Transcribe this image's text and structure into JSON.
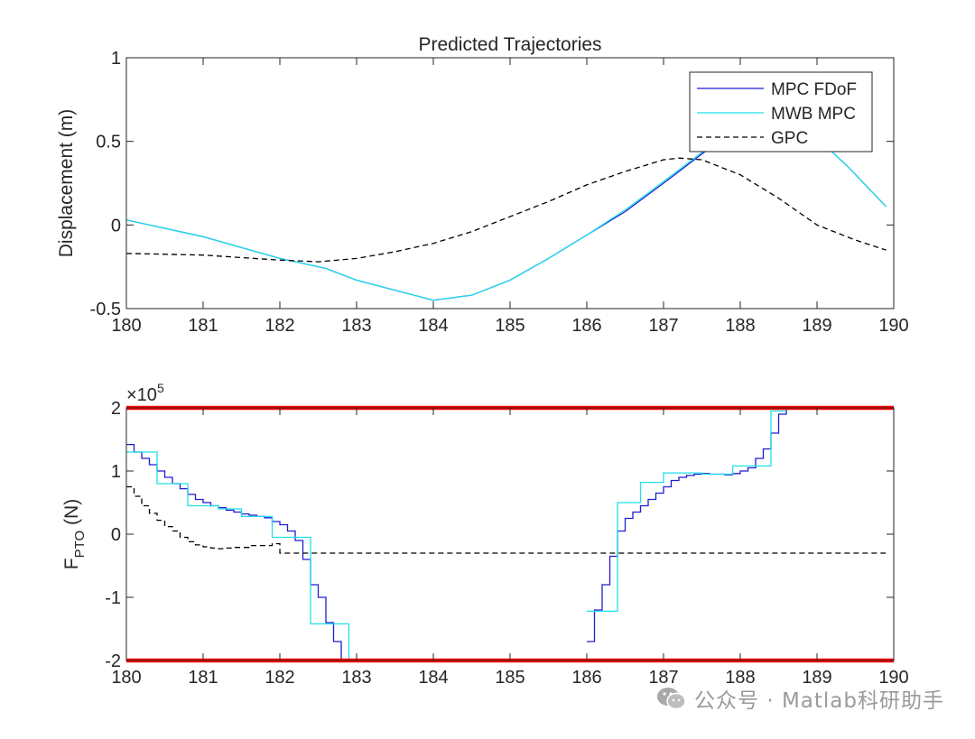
{
  "chart_data": [
    {
      "type": "line",
      "title": "Predicted Trajectories",
      "xlabel": "",
      "ylabel": "Displacement (m)",
      "xlim": [
        180,
        190
      ],
      "ylim": [
        -0.5,
        1
      ],
      "xticks": [
        "180",
        "181",
        "182",
        "183",
        "184",
        "185",
        "186",
        "187",
        "188",
        "189",
        "190"
      ],
      "yticks": [
        "-0.5",
        "0",
        "0.5",
        "1"
      ],
      "legend": {
        "position": "top-right",
        "entries": [
          "MPC FDoF",
          "MWB MPC",
          "GPC"
        ]
      },
      "series": [
        {
          "name": "MPC FDoF",
          "color": "#1d1dd4",
          "style": "solid",
          "x": [
            180,
            181,
            182,
            182.6,
            183,
            184,
            184.5,
            185,
            185.5,
            186,
            186.5,
            187,
            187.6,
            188,
            188.4,
            189,
            189.4,
            189.9
          ],
          "y": [
            0.03,
            -0.07,
            -0.2,
            -0.26,
            -0.33,
            -0.45,
            -0.42,
            -0.33,
            -0.2,
            -0.06,
            0.08,
            0.25,
            0.46,
            0.61,
            0.68,
            0.52,
            0.35,
            0.11
          ]
        },
        {
          "name": "MWB MPC",
          "color": "#1fe0ea",
          "style": "solid",
          "x": [
            180,
            181,
            182,
            182.6,
            183,
            184,
            184.5,
            185,
            185.5,
            186,
            186.5,
            187,
            187.6,
            188,
            188.4,
            189,
            189.4,
            189.9
          ],
          "y": [
            0.03,
            -0.07,
            -0.2,
            -0.26,
            -0.33,
            -0.45,
            -0.42,
            -0.33,
            -0.2,
            -0.06,
            0.09,
            0.26,
            0.47,
            0.61,
            0.68,
            0.52,
            0.35,
            0.11
          ]
        },
        {
          "name": "GPC",
          "color": "#000000",
          "style": "dashed",
          "x": [
            180,
            181,
            182,
            182.5,
            183,
            183.5,
            184,
            184.5,
            185,
            185.5,
            186,
            186.5,
            187,
            187.2,
            187.5,
            188,
            188.5,
            189,
            189.5,
            189.9
          ],
          "y": [
            -0.17,
            -0.18,
            -0.21,
            -0.22,
            -0.2,
            -0.16,
            -0.11,
            -0.04,
            0.05,
            0.14,
            0.24,
            0.32,
            0.39,
            0.4,
            0.39,
            0.3,
            0.16,
            0.0,
            -0.09,
            -0.15
          ]
        }
      ]
    },
    {
      "type": "line",
      "title": "",
      "xlabel": "",
      "ylabel_main": "F",
      "ylabel_sub": "PTO",
      "ylabel_unit": " (N)",
      "exponent_base": "×10",
      "exponent_power": "5",
      "xlim": [
        180,
        190
      ],
      "ylim": [
        -2,
        2
      ],
      "xticks": [
        "180",
        "181",
        "182",
        "183",
        "184",
        "185",
        "186",
        "187",
        "188",
        "189",
        "190"
      ],
      "yticks": [
        "-2",
        "-1",
        "0",
        "1",
        "2"
      ],
      "constraint_limits": {
        "values": [
          2,
          -2
        ],
        "color": "#ff0000"
      },
      "series": [
        {
          "name": "MPC FDoF",
          "color": "#1d1dd4",
          "style": "solid",
          "step": true,
          "x": [
            180,
            180.1,
            180.2,
            180.3,
            180.4,
            180.5,
            180.6,
            180.7,
            180.8,
            180.9,
            181,
            181.1,
            181.2,
            181.3,
            181.4,
            181.5,
            181.6,
            181.7,
            181.8,
            181.9,
            182,
            182.1,
            182.2,
            182.3,
            182.4,
            182.5,
            182.6,
            182.7,
            182.8,
            182.9
          ],
          "y": [
            1.42,
            1.3,
            1.2,
            1.1,
            1.0,
            0.9,
            0.8,
            0.72,
            0.63,
            0.55,
            0.5,
            0.45,
            0.42,
            0.38,
            0.35,
            0.32,
            0.3,
            0.28,
            0.26,
            0.2,
            0.15,
            0.05,
            -0.1,
            -0.4,
            -0.8,
            -1.0,
            -1.4,
            -1.7,
            -2.0,
            -2.0
          ]
        },
        {
          "name": "MPC FDoF",
          "color": "#1d1dd4",
          "style": "solid",
          "step": true,
          "x": [
            186,
            186.1,
            186.2,
            186.3,
            186.4,
            186.5,
            186.6,
            186.7,
            186.8,
            186.9,
            187,
            187.1,
            187.2,
            187.3,
            187.4,
            187.5,
            187.6,
            187.7,
            187.8,
            187.9,
            188,
            188.1,
            188.2,
            188.3,
            188.4,
            188.5,
            188.6
          ],
          "y": [
            -1.7,
            -1.2,
            -0.8,
            -0.35,
            0.05,
            0.25,
            0.35,
            0.45,
            0.55,
            0.65,
            0.75,
            0.85,
            0.9,
            0.93,
            0.95,
            0.96,
            0.95,
            0.95,
            0.94,
            0.96,
            1.0,
            1.05,
            1.2,
            1.35,
            1.6,
            1.9,
            2.0
          ]
        },
        {
          "name": "MWB MPC",
          "color": "#1fe0ea",
          "style": "solid",
          "step": true,
          "x": [
            180,
            180.4,
            180.8,
            181.2,
            181.5,
            181.9,
            182.3,
            182.4,
            182.5,
            182.9
          ],
          "y": [
            1.3,
            0.8,
            0.45,
            0.4,
            0.28,
            -0.05,
            -0.05,
            -1.42,
            -1.42,
            -2.0
          ]
        },
        {
          "name": "MWB MPC",
          "color": "#1fe0ea",
          "style": "solid",
          "step": true,
          "x": [
            186,
            186.4,
            186.5,
            186.7,
            187,
            187.5,
            187.9,
            188.4,
            188.6
          ],
          "y": [
            -1.22,
            0.5,
            0.5,
            0.82,
            0.97,
            0.95,
            1.08,
            1.95,
            1.95
          ]
        },
        {
          "name": "GPC",
          "color": "#000000",
          "style": "dashed",
          "step": true,
          "x": [
            180,
            180.1,
            180.2,
            180.3,
            180.4,
            180.5,
            180.6,
            180.7,
            180.8,
            180.9,
            181,
            181.1,
            181.2,
            181.3,
            181.4,
            181.6,
            181.9,
            182,
            189.9
          ],
          "y": [
            0.75,
            0.6,
            0.45,
            0.33,
            0.22,
            0.12,
            0.05,
            -0.05,
            -0.12,
            -0.17,
            -0.2,
            -0.22,
            -0.23,
            -0.22,
            -0.21,
            -0.18,
            -0.15,
            -0.3,
            -0.3
          ]
        }
      ]
    }
  ],
  "watermark": {
    "icon": "wechat-icon",
    "text": "公众号 · Matlab科研助手"
  }
}
